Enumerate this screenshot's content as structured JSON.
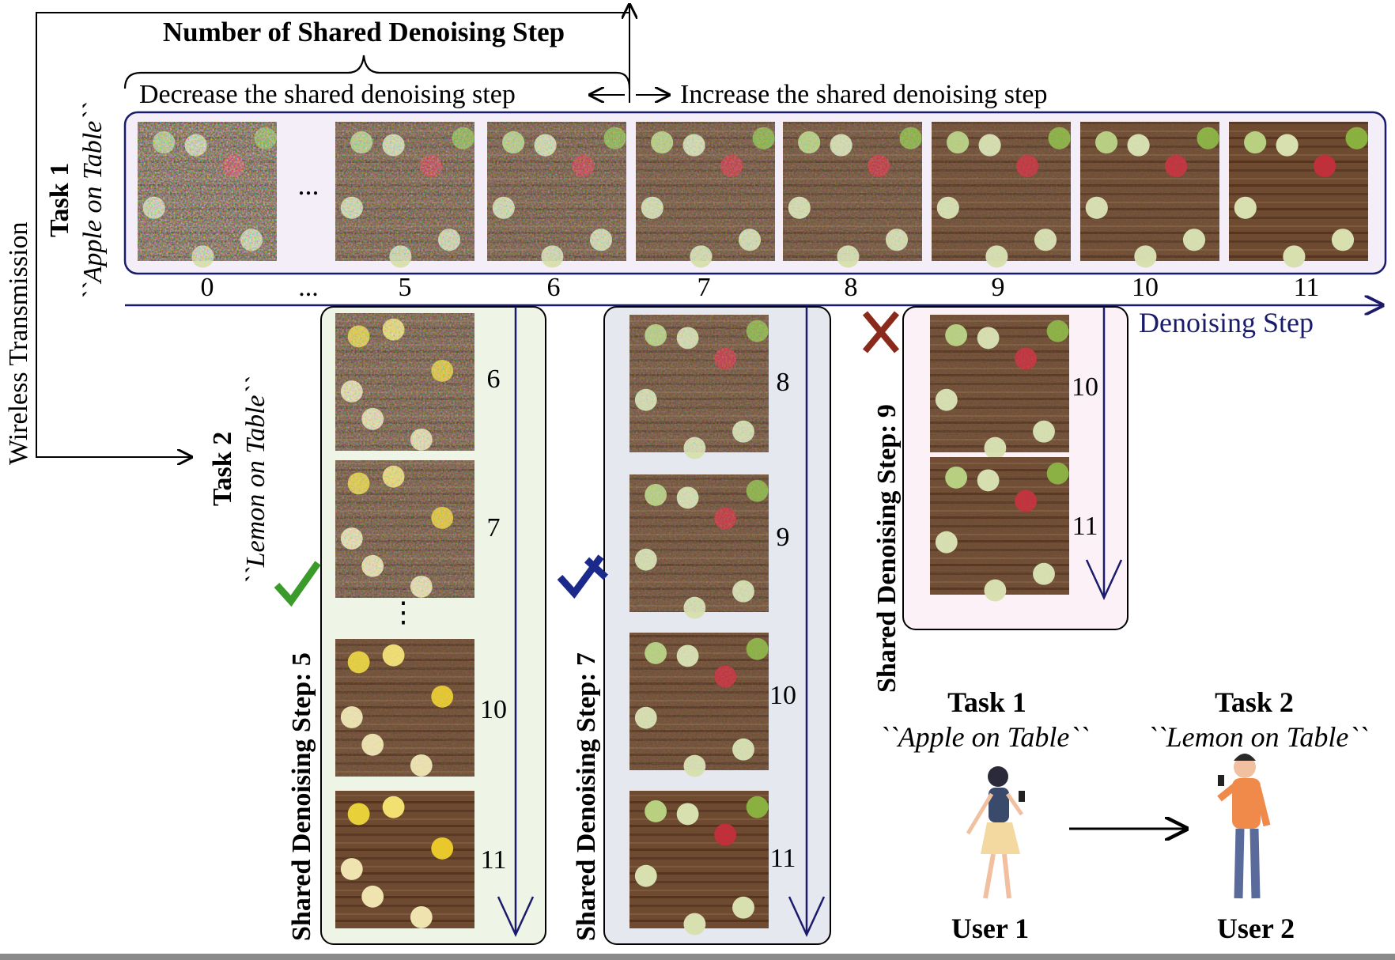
{
  "header": {
    "title": "Number of Shared Denoising Step",
    "decrease_label": "Decrease the shared denoising step",
    "increase_label": "Increase the shared denoising step"
  },
  "side_label": "Wireless Transmission",
  "task1": {
    "title": "Task 1",
    "prompt": "``Apple on Table``"
  },
  "task2": {
    "title": "Task 2",
    "prompt": "``Lemon on Table``"
  },
  "axis": {
    "label": "Denoising Step",
    "ticks": [
      "0",
      "...",
      "5",
      "6",
      "7",
      "8",
      "9",
      "10",
      "11"
    ],
    "row_ellipsis": "..."
  },
  "columns": [
    {
      "label": "Shared Denoising Step: 5",
      "mark": "check",
      "mark_color": "#3a9a2a",
      "bg": "#eef5e6",
      "steps": [
        "6",
        "7",
        "10",
        "11"
      ],
      "ellipsis": "⋮"
    },
    {
      "label": "Shared Denoising Step: 7",
      "mark": "check-partial",
      "mark_color": "#1b2a8a",
      "bg": "#e6e8f0",
      "steps": [
        "8",
        "9",
        "10",
        "11"
      ]
    },
    {
      "label": "Shared Denoising Step: 9",
      "mark": "cross",
      "mark_color": "#8a2a1a",
      "bg": "#fbf1f7",
      "steps": [
        "10",
        "11"
      ]
    }
  ],
  "users": [
    {
      "task": "Task 1",
      "prompt": "``Apple on Table``",
      "name": "User 1"
    },
    {
      "task": "Task 2",
      "prompt": "``Lemon on Table``",
      "name": "User 2"
    }
  ],
  "colors": {
    "navy": "#1b1b6b",
    "row_bg": "#f3eef7"
  }
}
